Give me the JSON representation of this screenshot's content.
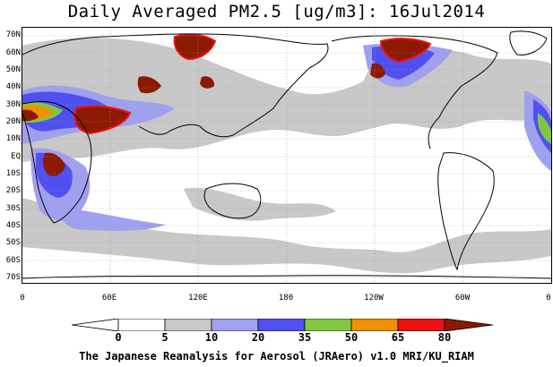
{
  "title": "Daily Averaged PM2.5 [ug/m3]: 16Jul2014",
  "lat_labels": [
    "70N",
    "60N",
    "50N",
    "40N",
    "30N",
    "20N",
    "10N",
    "EQ",
    "10S",
    "20S",
    "30S",
    "40S",
    "50S",
    "60S",
    "70S"
  ],
  "lon_labels": [
    "0",
    "60E",
    "120E",
    "180",
    "120W",
    "60W",
    "0"
  ],
  "colorbar": {
    "levels": [
      "0",
      "5",
      "10",
      "20",
      "35",
      "50",
      "65",
      "80"
    ],
    "colors": [
      "#ffffff",
      "#c8c8c8",
      "#a0a0f0",
      "#5050f0",
      "#80c840",
      "#f09000",
      "#f01010",
      "#8b1a00"
    ]
  },
  "footer": "The Japanese Reanalysis for Aerosol (JRAero) v1.0 MRI/KU_RIAM"
}
